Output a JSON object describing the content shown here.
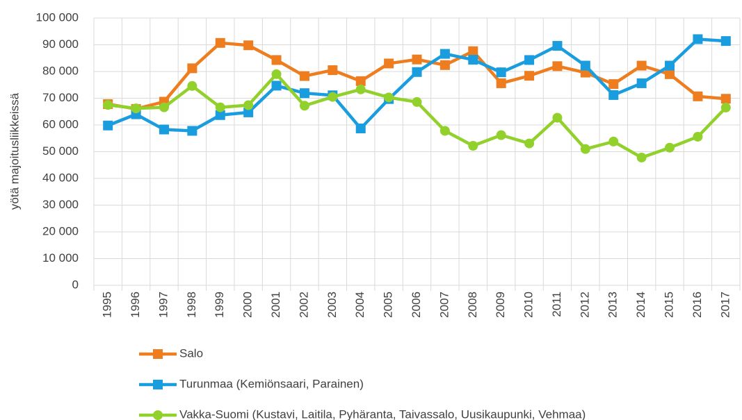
{
  "chart_data": {
    "type": "line",
    "ylabel": "yötä majoitusliikkeissä",
    "categories": [
      "1995",
      "1996",
      "1997",
      "1998",
      "1999",
      "2000",
      "2001",
      "2002",
      "2003",
      "2004",
      "2005",
      "2006",
      "2007",
      "2008",
      "2009",
      "2010",
      "2011",
      "2012",
      "2013",
      "2014",
      "2015",
      "2016",
      "2017"
    ],
    "series": [
      {
        "name": "Salo",
        "color": "#ed7d1f",
        "marker": "square",
        "values": [
          67800,
          66000,
          68700,
          81200,
          90700,
          89800,
          84300,
          78300,
          80500,
          76400,
          83000,
          84500,
          82400,
          87600,
          75600,
          78400,
          82000,
          79600,
          75300,
          82200,
          79000,
          70700,
          69800
        ]
      },
      {
        "name": "Turunmaa (Kemiönsaari, Parainen)",
        "color": "#1a9ddf",
        "marker": "square",
        "values": [
          59800,
          64000,
          58300,
          57800,
          63700,
          64700,
          74700,
          71900,
          71100,
          58700,
          69700,
          79800,
          86600,
          84400,
          79700,
          84300,
          89600,
          82200,
          71200,
          75600,
          82200,
          92100,
          91400
        ]
      },
      {
        "name": "Vakka-Suomi (Kustavi, Laitila, Pyhäranta, Taivassalo, Uusikaupunki, Vehmaa)",
        "color": "#92d02c",
        "marker": "circle",
        "values": [
          67500,
          66200,
          66600,
          74600,
          66600,
          67400,
          79000,
          67200,
          70500,
          73300,
          70300,
          68600,
          57800,
          52200,
          56200,
          53100,
          62700,
          51000,
          53800,
          47800,
          51500,
          55600,
          66500
        ]
      }
    ],
    "ylim": [
      0,
      100000
    ],
    "yticks": [
      0,
      {
        "value": 10000,
        "label": "10 000"
      },
      {
        "value": 20000,
        "label": "20 000"
      },
      {
        "value": 30000,
        "label": "30 000"
      },
      {
        "value": 40000,
        "label": "40 000"
      },
      {
        "value": 50000,
        "label": "50 000"
      },
      {
        "value": 60000,
        "label": "60 000"
      },
      {
        "value": 70000,
        "label": "70 000"
      },
      {
        "value": 80000,
        "label": "80 000"
      },
      {
        "value": 90000,
        "label": "90 000"
      },
      {
        "value": 100000,
        "label": "100 000"
      }
    ],
    "grid": true,
    "legend": "bottom"
  }
}
